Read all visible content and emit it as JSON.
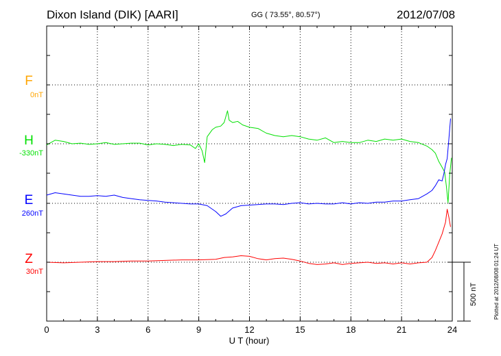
{
  "header": {
    "station": "Dixon Island (DIK)  [AARI]",
    "coords": "GG ( 73.55°,  80.57°)",
    "date": "2012/07/08"
  },
  "side_note": "Plotted at 2012/08/08 01:24 UT",
  "scale_label": "500 nT",
  "colors": {
    "F": "#ffa500",
    "H": "#00e000",
    "E": "#0000ff",
    "Z": "#ff0000",
    "grid": "#000000"
  },
  "chart_data": {
    "type": "line",
    "xlabel": "U T (hour)",
    "xlim": [
      0,
      24
    ],
    "xticks": [
      "0",
      "3",
      "6",
      "9",
      "12",
      "15",
      "18",
      "21",
      "24"
    ],
    "scale_nT": 500,
    "grid": true,
    "series": [
      {
        "name": "F",
        "baseline": "0nT",
        "x": [],
        "y": []
      },
      {
        "name": "H",
        "baseline": "-330nT",
        "x": [
          0,
          0.5,
          1,
          1.5,
          2,
          2.5,
          3,
          3.5,
          4,
          4.5,
          5,
          5.5,
          6,
          6.5,
          7,
          7.5,
          8,
          8.5,
          8.8,
          9,
          9.2,
          9.35,
          9.5,
          9.8,
          10,
          10.3,
          10.5,
          10.7,
          10.8,
          11,
          11.3,
          11.6,
          12,
          12.5,
          13,
          13.5,
          14,
          14.5,
          15,
          15.5,
          16,
          16.5,
          17,
          17.5,
          18,
          18.5,
          19,
          19.5,
          20,
          20.5,
          21,
          21.5,
          22,
          22.5,
          22.8,
          23,
          23.2,
          23.4,
          23.55,
          23.65,
          23.75,
          23.85,
          23.95
        ],
        "y": [
          -10,
          30,
          20,
          0,
          5,
          -5,
          0,
          10,
          -5,
          0,
          5,
          5,
          -10,
          0,
          -5,
          -15,
          -5,
          -10,
          -40,
          0,
          -60,
          -160,
          60,
          120,
          140,
          150,
          180,
          280,
          200,
          180,
          190,
          160,
          140,
          130,
          90,
          70,
          60,
          70,
          60,
          40,
          30,
          50,
          10,
          20,
          10,
          10,
          30,
          20,
          40,
          30,
          40,
          20,
          10,
          -20,
          -50,
          -80,
          -150,
          -200,
          -240,
          -360,
          -500,
          -260,
          -120
        ]
      },
      {
        "name": "E",
        "baseline": "260nT",
        "x": [
          0,
          0.5,
          1,
          1.5,
          2,
          2.5,
          3,
          3.5,
          4,
          4.5,
          5,
          5.5,
          6,
          6.5,
          7,
          7.5,
          8,
          8.5,
          9,
          9.5,
          10,
          10.3,
          10.6,
          11,
          11.5,
          12,
          12.5,
          13,
          13.5,
          14,
          14.5,
          15,
          15.5,
          16,
          16.5,
          17,
          17.5,
          18,
          18.5,
          19,
          19.5,
          20,
          20.5,
          21,
          21.5,
          22,
          22.5,
          22.8,
          23,
          23.2,
          23.4,
          23.5,
          23.6,
          23.7,
          23.8,
          23.9
        ],
        "y": [
          70,
          90,
          80,
          70,
          60,
          60,
          65,
          60,
          70,
          50,
          40,
          30,
          25,
          20,
          10,
          5,
          0,
          -5,
          -5,
          -20,
          -70,
          -110,
          -90,
          -40,
          -20,
          -15,
          -10,
          -5,
          -5,
          -10,
          0,
          5,
          -5,
          0,
          -5,
          -5,
          5,
          -5,
          5,
          0,
          10,
          10,
          20,
          20,
          30,
          40,
          80,
          110,
          150,
          200,
          190,
          250,
          330,
          380,
          550,
          720
        ]
      },
      {
        "name": "Z",
        "baseline": "30nT",
        "x": [
          0,
          1,
          2,
          3,
          4,
          5,
          6,
          7,
          8,
          9,
          10,
          10.5,
          11,
          11.5,
          12,
          12.5,
          13,
          13.5,
          14,
          14.5,
          15,
          15.5,
          16,
          16.5,
          17,
          17.5,
          18,
          18.5,
          19,
          19.5,
          20,
          20.5,
          21,
          21.5,
          22,
          22.5,
          22.8,
          23,
          23.2,
          23.4,
          23.6,
          23.7,
          23.8,
          23.9
        ],
        "y": [
          0,
          -5,
          0,
          5,
          5,
          10,
          10,
          15,
          20,
          20,
          25,
          40,
          45,
          55,
          50,
          30,
          20,
          30,
          35,
          25,
          10,
          -10,
          -20,
          -15,
          -5,
          -20,
          -10,
          -5,
          0,
          -10,
          -5,
          -15,
          -5,
          -15,
          -5,
          0,
          40,
          100,
          170,
          240,
          340,
          450,
          380,
          300
        ]
      }
    ]
  }
}
